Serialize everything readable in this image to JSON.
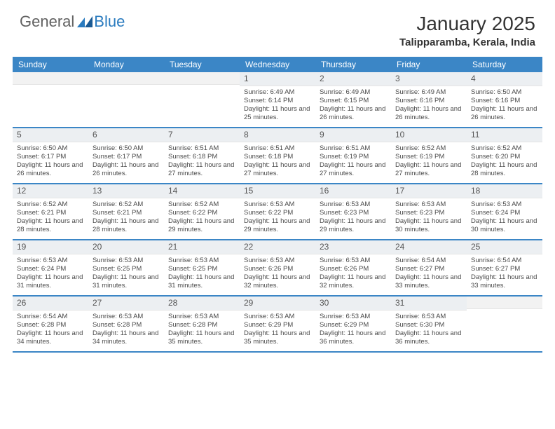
{
  "logo": {
    "general": "General",
    "blue": "Blue"
  },
  "title": "January 2025",
  "location": "Talipparamba, Kerala, India",
  "colors": {
    "header_bg": "#3b86c6",
    "header_text": "#ffffff",
    "daynum_bg": "#eceff2",
    "border": "#3b86c6",
    "text": "#4a4a4a",
    "logo_gray": "#616161",
    "logo_blue": "#2a7bbf"
  },
  "day_headers": [
    "Sunday",
    "Monday",
    "Tuesday",
    "Wednesday",
    "Thursday",
    "Friday",
    "Saturday"
  ],
  "weeks": [
    [
      null,
      null,
      null,
      {
        "n": "1",
        "sr": "6:49 AM",
        "ss": "6:14 PM",
        "dl": "11 hours and 25 minutes."
      },
      {
        "n": "2",
        "sr": "6:49 AM",
        "ss": "6:15 PM",
        "dl": "11 hours and 26 minutes."
      },
      {
        "n": "3",
        "sr": "6:49 AM",
        "ss": "6:16 PM",
        "dl": "11 hours and 26 minutes."
      },
      {
        "n": "4",
        "sr": "6:50 AM",
        "ss": "6:16 PM",
        "dl": "11 hours and 26 minutes."
      }
    ],
    [
      {
        "n": "5",
        "sr": "6:50 AM",
        "ss": "6:17 PM",
        "dl": "11 hours and 26 minutes."
      },
      {
        "n": "6",
        "sr": "6:50 AM",
        "ss": "6:17 PM",
        "dl": "11 hours and 26 minutes."
      },
      {
        "n": "7",
        "sr": "6:51 AM",
        "ss": "6:18 PM",
        "dl": "11 hours and 27 minutes."
      },
      {
        "n": "8",
        "sr": "6:51 AM",
        "ss": "6:18 PM",
        "dl": "11 hours and 27 minutes."
      },
      {
        "n": "9",
        "sr": "6:51 AM",
        "ss": "6:19 PM",
        "dl": "11 hours and 27 minutes."
      },
      {
        "n": "10",
        "sr": "6:52 AM",
        "ss": "6:19 PM",
        "dl": "11 hours and 27 minutes."
      },
      {
        "n": "11",
        "sr": "6:52 AM",
        "ss": "6:20 PM",
        "dl": "11 hours and 28 minutes."
      }
    ],
    [
      {
        "n": "12",
        "sr": "6:52 AM",
        "ss": "6:21 PM",
        "dl": "11 hours and 28 minutes."
      },
      {
        "n": "13",
        "sr": "6:52 AM",
        "ss": "6:21 PM",
        "dl": "11 hours and 28 minutes."
      },
      {
        "n": "14",
        "sr": "6:52 AM",
        "ss": "6:22 PM",
        "dl": "11 hours and 29 minutes."
      },
      {
        "n": "15",
        "sr": "6:53 AM",
        "ss": "6:22 PM",
        "dl": "11 hours and 29 minutes."
      },
      {
        "n": "16",
        "sr": "6:53 AM",
        "ss": "6:23 PM",
        "dl": "11 hours and 29 minutes."
      },
      {
        "n": "17",
        "sr": "6:53 AM",
        "ss": "6:23 PM",
        "dl": "11 hours and 30 minutes."
      },
      {
        "n": "18",
        "sr": "6:53 AM",
        "ss": "6:24 PM",
        "dl": "11 hours and 30 minutes."
      }
    ],
    [
      {
        "n": "19",
        "sr": "6:53 AM",
        "ss": "6:24 PM",
        "dl": "11 hours and 31 minutes."
      },
      {
        "n": "20",
        "sr": "6:53 AM",
        "ss": "6:25 PM",
        "dl": "11 hours and 31 minutes."
      },
      {
        "n": "21",
        "sr": "6:53 AM",
        "ss": "6:25 PM",
        "dl": "11 hours and 31 minutes."
      },
      {
        "n": "22",
        "sr": "6:53 AM",
        "ss": "6:26 PM",
        "dl": "11 hours and 32 minutes."
      },
      {
        "n": "23",
        "sr": "6:53 AM",
        "ss": "6:26 PM",
        "dl": "11 hours and 32 minutes."
      },
      {
        "n": "24",
        "sr": "6:54 AM",
        "ss": "6:27 PM",
        "dl": "11 hours and 33 minutes."
      },
      {
        "n": "25",
        "sr": "6:54 AM",
        "ss": "6:27 PM",
        "dl": "11 hours and 33 minutes."
      }
    ],
    [
      {
        "n": "26",
        "sr": "6:54 AM",
        "ss": "6:28 PM",
        "dl": "11 hours and 34 minutes."
      },
      {
        "n": "27",
        "sr": "6:53 AM",
        "ss": "6:28 PM",
        "dl": "11 hours and 34 minutes."
      },
      {
        "n": "28",
        "sr": "6:53 AM",
        "ss": "6:28 PM",
        "dl": "11 hours and 35 minutes."
      },
      {
        "n": "29",
        "sr": "6:53 AM",
        "ss": "6:29 PM",
        "dl": "11 hours and 35 minutes."
      },
      {
        "n": "30",
        "sr": "6:53 AM",
        "ss": "6:29 PM",
        "dl": "11 hours and 36 minutes."
      },
      {
        "n": "31",
        "sr": "6:53 AM",
        "ss": "6:30 PM",
        "dl": "11 hours and 36 minutes."
      },
      null
    ]
  ],
  "labels": {
    "sunrise": "Sunrise:",
    "sunset": "Sunset:",
    "daylight": "Daylight:"
  }
}
